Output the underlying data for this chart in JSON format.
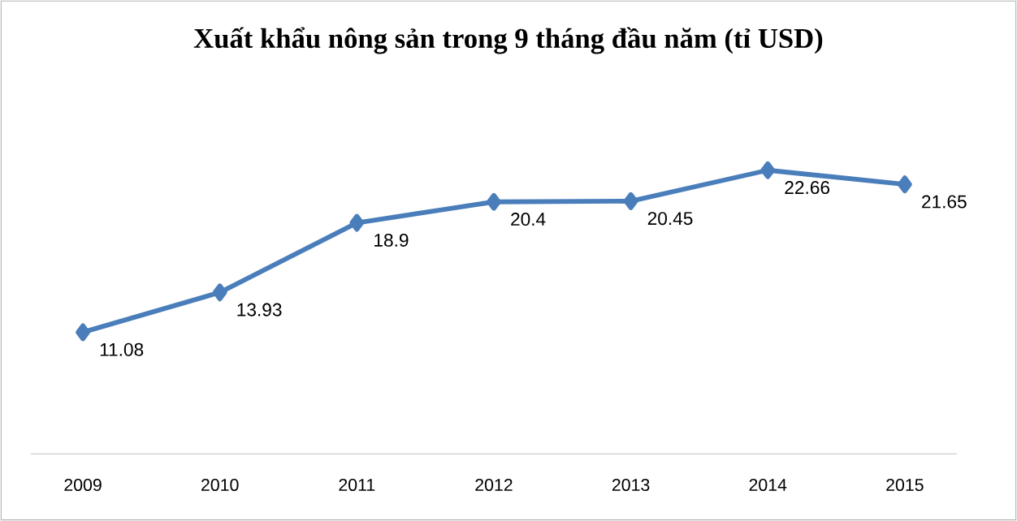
{
  "chart_data": {
    "type": "line",
    "title": "Xuất khẩu nông sản trong 9 tháng đầu năm (tỉ USD)",
    "categories": [
      "2009",
      "2010",
      "2011",
      "2012",
      "2013",
      "2014",
      "2015"
    ],
    "values": [
      11.08,
      13.93,
      18.9,
      20.4,
      20.45,
      22.66,
      21.65
    ],
    "color": "#4a7ebb",
    "marker": "diamond",
    "line_style": "solid",
    "data_labels": true,
    "tick_labels": "x"
  }
}
